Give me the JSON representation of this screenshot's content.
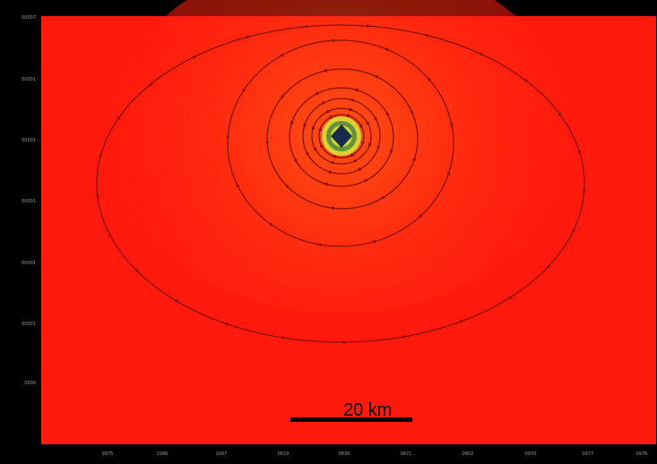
{
  "map": {
    "plot_type": "contour",
    "colors": {
      "frame": "#000000",
      "background": "#ff1a0d",
      "contour_line": "#8a0f08",
      "scale_bar": "#000000",
      "center_low": "#1a2b4a",
      "center_mid": "#5a8a3a",
      "center_high": "#d4e23a"
    },
    "x_tick_labels": [
      "9975",
      "1996",
      "2007",
      "0819",
      "0830",
      "0871",
      "0902",
      "0933",
      "0977",
      "0976"
    ],
    "y_tick_labels": [
      "00007",
      "00001",
      "00001",
      "00001",
      "00001",
      "00001",
      "0000"
    ],
    "scale_bar": {
      "label": "20 km",
      "distance_km": 20
    }
  }
}
